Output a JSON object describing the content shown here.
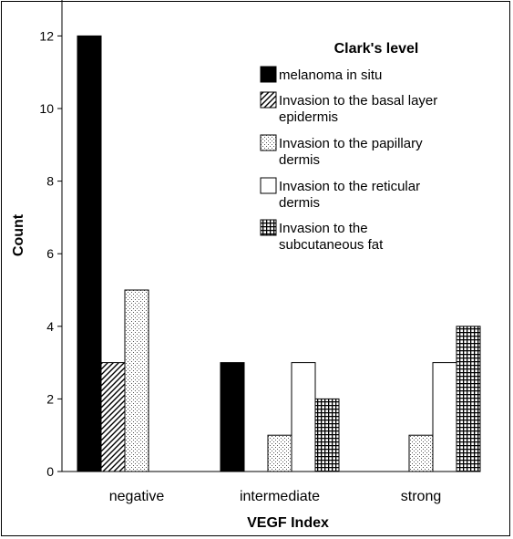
{
  "chart_data": {
    "type": "bar",
    "title": "",
    "xlabel": "VEGF Index",
    "ylabel": "Count",
    "ylim": [
      0,
      13
    ],
    "yticks": [
      0,
      2,
      4,
      6,
      8,
      10,
      12
    ],
    "categories": [
      "negative",
      "intermediate",
      "strong"
    ],
    "legend": {
      "title": "Clark's level",
      "placement": "top-right"
    },
    "grid": false,
    "series": [
      {
        "name": [
          "melanoma in situ"
        ],
        "pattern": "solid-black",
        "values": [
          12,
          3,
          0
        ]
      },
      {
        "name": [
          "Invasion to the basal layer",
          "epidermis"
        ],
        "pattern": "diagonal-hatch",
        "values": [
          3,
          0,
          0
        ]
      },
      {
        "name": [
          "Invasion to the papillary",
          "dermis"
        ],
        "pattern": "dots",
        "values": [
          5,
          1,
          1
        ]
      },
      {
        "name": [
          "Invasion to the reticular",
          "dermis"
        ],
        "pattern": "white",
        "values": [
          0,
          3,
          3
        ]
      },
      {
        "name": [
          "Invasion to the",
          "subcutaneous fat"
        ],
        "pattern": "crosshatch",
        "values": [
          0,
          2,
          4
        ]
      }
    ]
  }
}
